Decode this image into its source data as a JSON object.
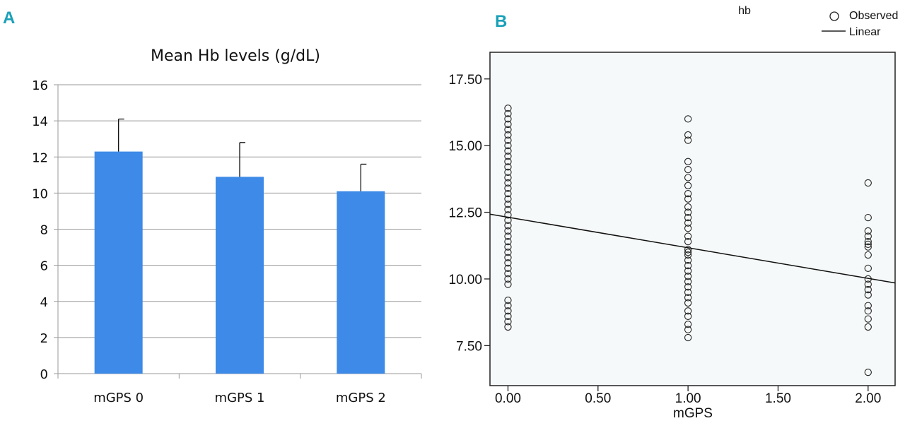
{
  "panels": {
    "a_label": "A",
    "b_label": "B"
  },
  "chart_data": [
    {
      "type": "bar",
      "title": "Mean Hb levels (g/dL)",
      "categories": [
        "mGPS 0",
        "mGPS 1",
        "mGPS 2"
      ],
      "values": [
        12.3,
        10.9,
        10.1
      ],
      "error_upper": [
        1.8,
        1.9,
        1.5
      ],
      "ylim": [
        0,
        16
      ],
      "yticks": [
        0,
        2,
        4,
        6,
        8,
        10,
        12,
        14,
        16
      ],
      "xlabel": "",
      "ylabel": "",
      "grid": true,
      "bar_color": "#3d8ae8"
    },
    {
      "type": "scatter",
      "title": "hb",
      "xlabel": "mGPS",
      "ylabel": "",
      "xlim": [
        -0.1,
        2.15
      ],
      "ylim": [
        6.0,
        18.5
      ],
      "xticks": [
        0,
        0.5,
        1,
        1.5,
        2
      ],
      "xtick_labels": [
        "0.00",
        "0.50",
        "1.00",
        "1.50",
        "2.00"
      ],
      "yticks": [
        7.5,
        10,
        12.5,
        15,
        17.5
      ],
      "ytick_labels": [
        "7.50",
        "10.00",
        "12.50",
        "15.00",
        "17.50"
      ],
      "legend": {
        "position": "top-right",
        "entries": [
          {
            "label": "Observed",
            "marker": "circle"
          },
          {
            "label": "Linear",
            "marker": "line"
          }
        ]
      },
      "fit_line": {
        "x": [
          -0.1,
          2.15
        ],
        "y": [
          12.43,
          9.85
        ]
      },
      "series": [
        {
          "name": "mGPS 0",
          "x": 0,
          "y": [
            16.4,
            16.2,
            16.0,
            15.8,
            15.6,
            15.4,
            15.2,
            15.0,
            14.8,
            14.6,
            14.4,
            14.2,
            14.0,
            13.8,
            13.6,
            13.4,
            13.2,
            13.0,
            12.8,
            12.6,
            12.4,
            12.2,
            12.0,
            11.8,
            11.6,
            11.4,
            11.2,
            11.0,
            10.8,
            10.6,
            10.4,
            10.2,
            10.0,
            9.8,
            9.2,
            9.0,
            8.8,
            8.6,
            8.4,
            8.2
          ]
        },
        {
          "name": "mGPS 1",
          "x": 1,
          "y": [
            16.0,
            15.4,
            15.2,
            14.4,
            14.1,
            13.8,
            13.5,
            13.2,
            13.0,
            12.7,
            12.5,
            12.3,
            12.1,
            11.9,
            11.6,
            11.4,
            11.1,
            11.0,
            10.9,
            10.7,
            10.5,
            10.3,
            10.1,
            9.9,
            9.7,
            9.5,
            9.3,
            9.1,
            8.8,
            8.6,
            8.3,
            8.1,
            7.8
          ]
        },
        {
          "name": "mGPS 2",
          "x": 2,
          "y": [
            13.6,
            12.3,
            11.8,
            11.6,
            11.4,
            11.3,
            11.2,
            10.9,
            10.4,
            10.0,
            9.8,
            9.6,
            9.4,
            9.0,
            8.8,
            8.5,
            8.2,
            6.5
          ]
        }
      ]
    }
  ]
}
